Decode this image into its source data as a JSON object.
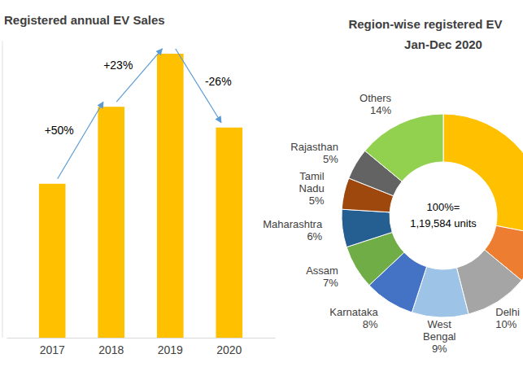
{
  "chart_data": [
    {
      "type": "bar",
      "title": "Registered annual EV Sales",
      "categories": [
        "2017",
        "2018",
        "2019",
        "2020"
      ],
      "values": [
        87600,
        131400,
        161600,
        119584
      ],
      "color": "#ffc000",
      "ylim": [
        0,
        169000
      ],
      "tick_labels": "x",
      "annotations": [
        "+50%",
        "+23%",
        "-26%"
      ]
    },
    {
      "type": "donut",
      "title": "Region-wise registered EV",
      "subtitle": "Jan-Dec 2020",
      "categories": [
        null,
        null,
        "Delhi",
        "West Bengal",
        "Karnataka",
        "Assam",
        "Maharashtra",
        "Tamil Nadu",
        "Rajasthan",
        "Others"
      ],
      "values": [
        28,
        8,
        10,
        9,
        8,
        7,
        6,
        5,
        5,
        14
      ],
      "value_labels": [
        null,
        null,
        "10%",
        "9%",
        "8%",
        "7%",
        "6%",
        "5%",
        "5%",
        "14%"
      ],
      "colors": [
        "#ffc000",
        "#ed7d31",
        "#a5a5a5",
        "#9dc3e6",
        "#4472c4",
        "#70ad47",
        "#255e91",
        "#9e480e",
        "#636363",
        "#92d050"
      ],
      "data_labels": true,
      "center_text": [
        "100%=",
        "1,19,584 units"
      ]
    }
  ]
}
